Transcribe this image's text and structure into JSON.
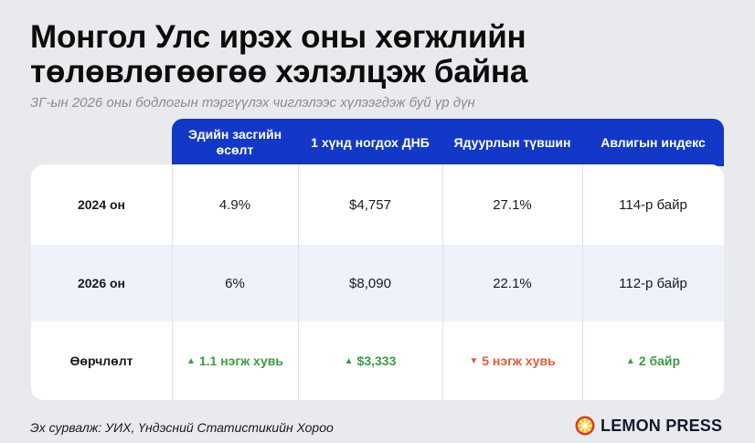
{
  "title_line1": "Монгол Улс ирэх оны хөгжлийн",
  "title_line2": "төлөвлөгөөгөө хэлэлцэж байна",
  "subtitle": "ЗГ-ын 2026 оны бодлогын тэргүүлэх чиглэлээс хүлээгдэж буй үр дүн",
  "columns": [
    {
      "label_l1": "Эдийн засгийн",
      "label_l2": "өсөлт"
    },
    {
      "label_l1": "1 хүнд ногдох ДНБ",
      "label_l2": ""
    },
    {
      "label_l1": "Ядуурлын түвшин",
      "label_l2": ""
    },
    {
      "label_l1": "Авлигын индекс",
      "label_l2": ""
    }
  ],
  "rows": [
    {
      "label": "2024 он",
      "values": [
        "4.9%",
        "$4,757",
        "27.1%",
        "114-р байр"
      ]
    },
    {
      "label": "2026 он",
      "values": [
        "6%",
        "$8,090",
        "22.1%",
        "112-р байр"
      ]
    }
  ],
  "change_row": {
    "label": "Өөрчлөлт",
    "values": [
      "1.1 нэгж хувь",
      "$3,333",
      "5 нэгж хувь",
      "2 байр"
    ],
    "directions": [
      "up",
      "up",
      "down",
      "up"
    ]
  },
  "source": "Эх сурвалж: УИХ, Үндэсний Статистикийн Хороо",
  "brand": "LEMON PRESS",
  "colors": {
    "header_blue": "#1338c7",
    "up_green": "#3d9a3f",
    "down_red": "#e25a3a",
    "lemon_yellow": "#f4c430",
    "lemon_red": "#d93b2b"
  }
}
